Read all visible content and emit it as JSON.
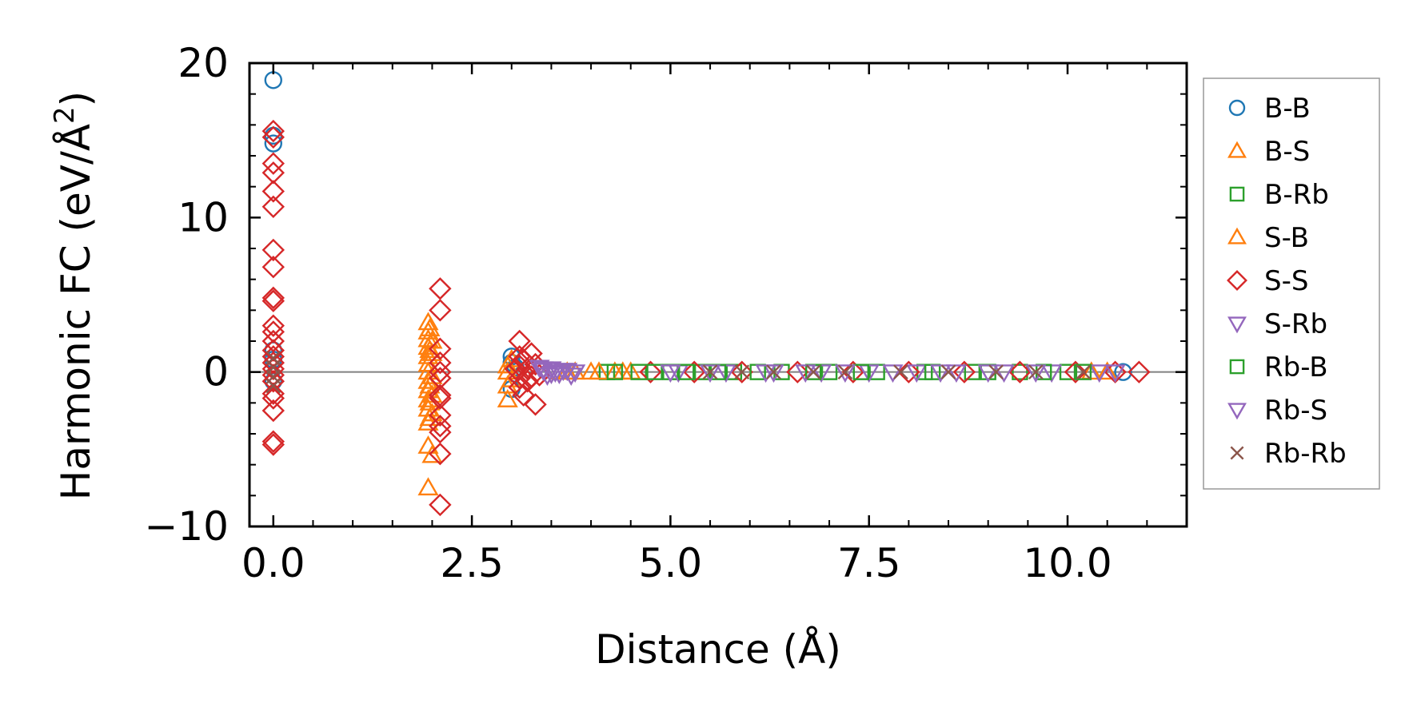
{
  "chart_data": {
    "type": "scatter",
    "xlabel": "Distance (Å)",
    "ylabel_main": "Harmonic FC (eV/Å",
    "ylabel_sup": "2",
    "ylabel_end": ")",
    "xlim": [
      -0.3,
      11.5
    ],
    "ylim": [
      -10,
      20
    ],
    "xticks": [
      0.0,
      2.5,
      5.0,
      7.5,
      10.0
    ],
    "xtick_labels": [
      "0.0",
      "2.5",
      "5.0",
      "7.5",
      "10.0"
    ],
    "xminor_step": 0.5,
    "yticks": [
      -10,
      0,
      10,
      20
    ],
    "ytick_labels": [
      "−10",
      "0",
      "10",
      "20"
    ],
    "yminor_step": 2,
    "zero_line": 0,
    "legend_position": "outside-right",
    "series": [
      {
        "name": "B-B",
        "marker": "circle",
        "color": "#1f77b4",
        "points": [
          [
            0.0,
            18.9
          ],
          [
            0.0,
            14.8
          ],
          [
            0.0,
            15.3
          ],
          [
            0.0,
            1.4
          ],
          [
            0.0,
            0.8
          ],
          [
            0.0,
            -0.6
          ],
          [
            3.0,
            1.0
          ],
          [
            3.0,
            0.6
          ],
          [
            3.0,
            -1.1
          ],
          [
            3.05,
            0.3
          ],
          [
            10.7,
            0.0
          ]
        ]
      },
      {
        "name": "B-S",
        "marker": "triangle-up",
        "color": "#ff7f0e",
        "points": [
          [
            1.95,
            3.2
          ],
          [
            1.95,
            2.6
          ],
          [
            1.95,
            2.1
          ],
          [
            1.95,
            1.6
          ],
          [
            1.95,
            1.0
          ],
          [
            1.95,
            0.5
          ],
          [
            1.95,
            0.0
          ],
          [
            1.95,
            -0.6
          ],
          [
            1.95,
            -1.2
          ],
          [
            1.95,
            -1.8
          ],
          [
            1.95,
            -2.4
          ],
          [
            1.95,
            -3.3
          ],
          [
            1.95,
            -4.8
          ],
          [
            1.95,
            -7.5
          ],
          [
            2.0,
            2.0
          ],
          [
            2.0,
            1.2
          ],
          [
            2.0,
            -0.3
          ],
          [
            2.0,
            -1.5
          ],
          [
            2.0,
            -2.7
          ],
          [
            2.0,
            -5.4
          ],
          [
            2.95,
            -1.8
          ],
          [
            2.95,
            -0.9
          ],
          [
            2.95,
            0.0
          ],
          [
            2.95,
            0.4
          ],
          [
            3.6,
            0.0
          ],
          [
            3.8,
            0.0
          ],
          [
            4.0,
            0.0
          ],
          [
            4.4,
            0.0
          ],
          [
            4.5,
            0.0
          ],
          [
            10.3,
            0.0
          ]
        ]
      },
      {
        "name": "B-Rb",
        "marker": "square",
        "color": "#2ca02c",
        "points": [
          [
            4.2,
            0.0
          ],
          [
            4.6,
            0.0
          ],
          [
            5.0,
            0.0
          ],
          [
            5.4,
            0.0
          ],
          [
            5.8,
            0.0
          ],
          [
            6.4,
            0.0
          ],
          [
            7.0,
            0.0
          ],
          [
            7.6,
            0.0
          ],
          [
            8.2,
            0.0
          ],
          [
            8.8,
            0.0
          ],
          [
            9.4,
            0.0
          ],
          [
            10.0,
            0.0
          ]
        ]
      },
      {
        "name": "S-B",
        "marker": "triangle-up",
        "color": "#ff7f0e",
        "points": [
          [
            1.97,
            2.8
          ],
          [
            1.97,
            1.4
          ],
          [
            1.97,
            -0.9
          ],
          [
            1.97,
            -2.0
          ],
          [
            1.97,
            -3.0
          ],
          [
            3.0,
            -0.5
          ],
          [
            3.0,
            0.8
          ],
          [
            3.7,
            0.0
          ],
          [
            4.1,
            0.0
          ],
          [
            4.3,
            0.0
          ],
          [
            10.5,
            0.0
          ]
        ]
      },
      {
        "name": "S-S",
        "marker": "diamond",
        "color": "#d62728",
        "points": [
          [
            0.0,
            15.6
          ],
          [
            0.0,
            15.2
          ],
          [
            0.0,
            13.5
          ],
          [
            0.0,
            12.9
          ],
          [
            0.0,
            11.7
          ],
          [
            0.0,
            10.7
          ],
          [
            0.0,
            7.9
          ],
          [
            0.0,
            6.8
          ],
          [
            0.0,
            4.8
          ],
          [
            0.0,
            4.6
          ],
          [
            0.0,
            3.0
          ],
          [
            0.0,
            2.6
          ],
          [
            0.0,
            2.0
          ],
          [
            0.0,
            1.4
          ],
          [
            0.0,
            1.0
          ],
          [
            0.0,
            0.6
          ],
          [
            0.0,
            0.2
          ],
          [
            0.0,
            -0.2
          ],
          [
            0.0,
            -0.6
          ],
          [
            0.0,
            -1.4
          ],
          [
            0.0,
            -1.7
          ],
          [
            0.0,
            -2.5
          ],
          [
            0.0,
            -4.5
          ],
          [
            0.0,
            -4.7
          ],
          [
            2.1,
            5.4
          ],
          [
            2.1,
            4.0
          ],
          [
            2.1,
            1.5
          ],
          [
            2.1,
            0.6
          ],
          [
            2.1,
            0.0
          ],
          [
            2.1,
            -0.4
          ],
          [
            2.1,
            -1.5
          ],
          [
            2.1,
            -1.7
          ],
          [
            2.1,
            -2.8
          ],
          [
            2.1,
            -3.5
          ],
          [
            2.1,
            -3.9
          ],
          [
            2.1,
            -5.3
          ],
          [
            2.1,
            -8.6
          ],
          [
            3.05,
            0.2
          ],
          [
            3.1,
            2.0
          ],
          [
            3.1,
            1.0
          ],
          [
            3.1,
            0.4
          ],
          [
            3.1,
            -0.4
          ],
          [
            3.1,
            -1.0
          ],
          [
            3.15,
            -1.5
          ],
          [
            3.15,
            0.8
          ],
          [
            3.2,
            -0.6
          ],
          [
            3.2,
            0.2
          ],
          [
            3.25,
            1.2
          ],
          [
            3.25,
            -0.3
          ],
          [
            3.3,
            -2.1
          ],
          [
            3.3,
            0.5
          ],
          [
            3.35,
            -0.2
          ],
          [
            4.75,
            0.0
          ],
          [
            5.3,
            0.0
          ],
          [
            5.9,
            0.0
          ],
          [
            6.6,
            0.0
          ],
          [
            7.3,
            0.0
          ],
          [
            8.0,
            0.0
          ],
          [
            8.7,
            0.0
          ],
          [
            9.4,
            0.0
          ],
          [
            10.1,
            0.0
          ],
          [
            10.6,
            0.0
          ],
          [
            10.9,
            0.0
          ]
        ]
      },
      {
        "name": "S-Rb",
        "marker": "triangle-down",
        "color": "#9467bd",
        "points": [
          [
            3.35,
            0.3
          ],
          [
            3.4,
            0.1
          ],
          [
            3.45,
            -0.2
          ],
          [
            3.5,
            0.2
          ],
          [
            3.55,
            0.0
          ],
          [
            3.6,
            -0.1
          ],
          [
            3.7,
            0.1
          ],
          [
            3.8,
            0.0
          ],
          [
            5.1,
            0.0
          ],
          [
            5.7,
            0.0
          ],
          [
            6.3,
            0.0
          ],
          [
            6.9,
            0.0
          ],
          [
            7.5,
            0.0
          ],
          [
            8.1,
            0.0
          ],
          [
            8.6,
            0.0
          ],
          [
            9.2,
            0.0
          ],
          [
            9.8,
            0.0
          ],
          [
            10.4,
            0.0
          ]
        ]
      },
      {
        "name": "Rb-B",
        "marker": "square",
        "color": "#2ca02c",
        "points": [
          [
            4.3,
            0.0
          ],
          [
            4.8,
            0.0
          ],
          [
            5.2,
            0.0
          ],
          [
            5.6,
            0.0
          ],
          [
            6.1,
            0.0
          ],
          [
            6.8,
            0.0
          ],
          [
            7.4,
            0.0
          ],
          [
            8.3,
            0.0
          ],
          [
            9.0,
            0.0
          ],
          [
            9.7,
            0.0
          ],
          [
            10.2,
            0.0
          ]
        ]
      },
      {
        "name": "Rb-S",
        "marker": "triangle-down",
        "color": "#9467bd",
        "points": [
          [
            3.4,
            0.2
          ],
          [
            3.5,
            -0.1
          ],
          [
            3.65,
            0.1
          ],
          [
            3.75,
            -0.2
          ],
          [
            5.0,
            0.0
          ],
          [
            5.5,
            0.0
          ],
          [
            6.2,
            0.0
          ],
          [
            6.7,
            0.0
          ],
          [
            7.2,
            0.0
          ],
          [
            7.8,
            0.0
          ],
          [
            8.4,
            0.0
          ],
          [
            9.0,
            0.0
          ],
          [
            9.6,
            0.0
          ],
          [
            10.6,
            0.0
          ]
        ]
      },
      {
        "name": "Rb-Rb",
        "marker": "x",
        "color": "#8c564b",
        "points": [
          [
            0.0,
            0.9
          ],
          [
            0.0,
            0.3
          ],
          [
            0.0,
            -0.3
          ],
          [
            0.0,
            -0.9
          ],
          [
            5.5,
            0.0
          ],
          [
            5.9,
            0.0
          ],
          [
            6.3,
            0.0
          ],
          [
            6.8,
            0.0
          ],
          [
            7.2,
            0.0
          ],
          [
            7.9,
            0.0
          ],
          [
            8.5,
            0.0
          ],
          [
            9.1,
            0.0
          ],
          [
            9.6,
            0.0
          ],
          [
            10.2,
            0.0
          ]
        ]
      }
    ]
  }
}
